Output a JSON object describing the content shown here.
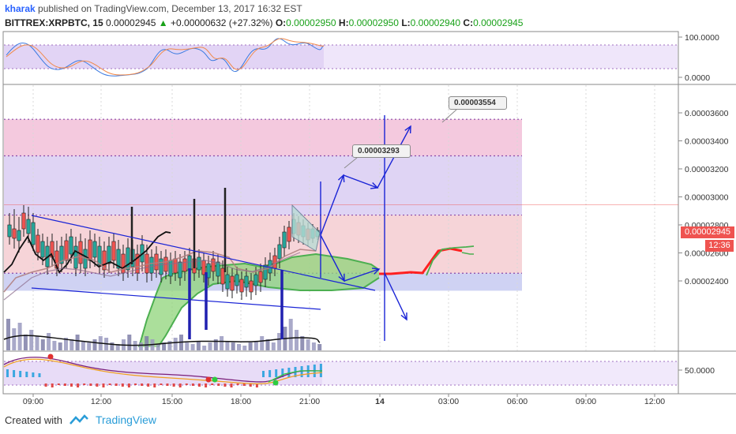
{
  "header": {
    "author": "kharak",
    "text": "published on TradingView.com, December 13, 2017 16:32 EST"
  },
  "ohlc": {
    "symbol": "BITTREX:XRPBTC, 15",
    "last": "0.00002945",
    "change_icon": "triangle-up-icon",
    "change": "+0.00000632 (+27.32%)",
    "o_label": "O:",
    "o": "0.00002950",
    "h_label": "H:",
    "h": "0.00002950",
    "l_label": "L:",
    "l": "0.00002940",
    "c_label": "C:",
    "c": "0.00002945"
  },
  "colors": {
    "candle_up": "#26a69a",
    "candle_down": "#ef5350",
    "cloud_fill": "#8fd47a",
    "cloud_line": "#4caf50",
    "projection_red": "#ff2020",
    "arrow_blue": "#1a24d6",
    "price_tag": "#ef5350",
    "time_tag": "#ef5350",
    "zone_pink": "#f3c4da",
    "zone_purple": "#dcd0f2",
    "zone_blue": "#c9cdf0"
  },
  "chart_data": {
    "type": "candlestick",
    "title": "",
    "price_axis": {
      "ticks": [
        "0.00003600",
        "0.00003400",
        "0.00003200",
        "0.00003000",
        "0.00002800",
        "0.00002600",
        "0.00002400"
      ],
      "tick_values": [
        3.6e-05,
        3.4e-05,
        3.2e-05,
        3e-05,
        2.8e-05,
        2.6e-05,
        2.4e-05
      ],
      "current_price": "0.00002945",
      "current_time_remaining": "12:36"
    },
    "oscillator_axis": {
      "ticks": [
        "100.0000",
        "0.0000"
      ]
    },
    "lower_axis": {
      "ticks": [
        "50.0000"
      ]
    },
    "time_axis": {
      "ticks": [
        "09:00",
        "12:00",
        "15:00",
        "18:00",
        "21:00",
        "14",
        "03:00",
        "06:00",
        "09:00",
        "12:00"
      ]
    },
    "annotations": [
      {
        "label": "0.00003554",
        "price": 3.554e-05
      },
      {
        "label": "0.00003293",
        "price": 3.293e-05
      }
    ],
    "zones": [
      {
        "from": 3.554e-05,
        "to": 3.293e-05,
        "color": "pink"
      },
      {
        "from": 3.293e-05,
        "to": 2.87e-05,
        "color": "purple"
      },
      {
        "from": 2.87e-05,
        "to": 2.455e-05,
        "color": "salmon"
      },
      {
        "from": 2.455e-05,
        "to": 2.33e-05,
        "color": "blue"
      }
    ]
  },
  "footer": {
    "created_with": "Created with",
    "brand": "TradingView",
    "brand_icon": "tradingview-logo-icon"
  }
}
